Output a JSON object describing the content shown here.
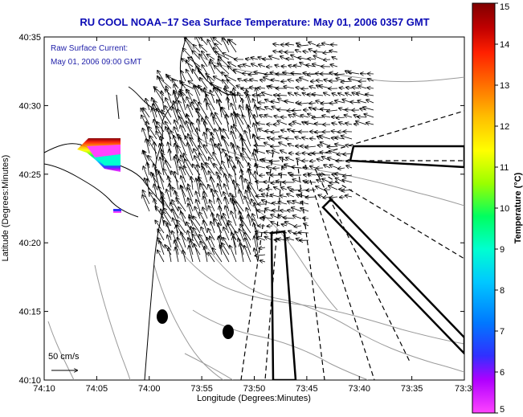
{
  "title": "RU COOL  NOAA–17  Sea Surface Temperature:  May 01, 2006 0357 GMT",
  "legend_box": {
    "line1": "Raw Surface Current:",
    "line2": "May 01, 2006 09:00 GMT"
  },
  "scale_arrow_label": "50 cm/s",
  "x_axis": {
    "label": "Longitude (Degrees:Minutes)",
    "ticks": [
      "74:10",
      "74:05",
      "74:00",
      "73:55",
      "73:50",
      "73:45",
      "73:40",
      "73:35",
      "73:3"
    ]
  },
  "y_axis": {
    "label": "Latitude (Degrees:Minutes)",
    "ticks": [
      "40:35",
      "40:30",
      "40:25",
      "40:20",
      "40:15",
      "40:10"
    ]
  },
  "colorbar": {
    "label": "Temperature (°C)",
    "ticks": [
      "15",
      "14",
      "13",
      "12",
      "11",
      "10",
      "9",
      "8",
      "7",
      "6",
      "5"
    ],
    "gradient": [
      "#ff44ff",
      "#b000ff",
      "#3030ff",
      "#0078ff",
      "#00c8ff",
      "#00ffd0",
      "#00ff60",
      "#9aff00",
      "#ffff00",
      "#ffc000",
      "#ff7000",
      "#ff2000",
      "#c00000",
      "#800000"
    ]
  },
  "colors": {
    "title": "#0b0bb5",
    "coastline": "#000000",
    "bathymetry": "#9a9a9a",
    "buoy": "#000000"
  }
}
